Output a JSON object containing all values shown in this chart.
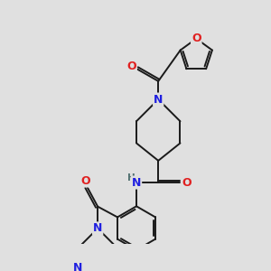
{
  "background_color": "#e0e0e0",
  "bond_color": "#1a1a1a",
  "atom_colors": {
    "N": "#2020e0",
    "O": "#e02020",
    "H": "#507070",
    "C": "#1a1a1a"
  },
  "figsize": [
    3.0,
    3.0
  ],
  "dpi": 100,
  "lw": 1.4,
  "fontsize": 8.5
}
